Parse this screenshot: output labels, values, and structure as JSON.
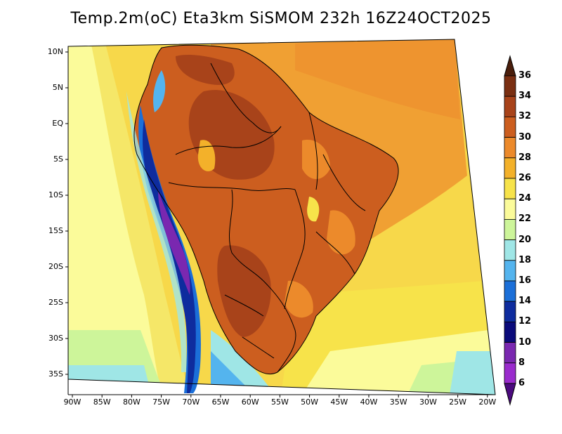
{
  "title": "Temp.2m(oC) Eta3km SiSMOM 232h 16Z24OCT2025",
  "y_axis_ticks": [
    "10N",
    "5N",
    "EQ",
    "5S",
    "10S",
    "15S",
    "20S",
    "25S",
    "30S",
    "35S"
  ],
  "x_axis_ticks": [
    "90W",
    "85W",
    "80W",
    "75W",
    "70W",
    "65W",
    "60W",
    "55W",
    "50W",
    "45W",
    "40W",
    "35W",
    "30W",
    "25W",
    "20W"
  ],
  "colorbar": {
    "labels": [
      "36",
      "34",
      "32",
      "30",
      "28",
      "26",
      "24",
      "22",
      "20",
      "18",
      "16",
      "14",
      "12",
      "10",
      "8",
      "6"
    ],
    "colors": [
      "#4a1e0c",
      "#7a2f12",
      "#a8431a",
      "#cc5e1f",
      "#ec8a2b",
      "#f3b12a",
      "#f7e34a",
      "#fbfb9a",
      "#cdf59a",
      "#9fe6e6",
      "#54b4ee",
      "#1b6fd8",
      "#0e2c9e",
      "#0a0a7a",
      "#7a28b0",
      "#9a2ccd",
      "#4b0a7e"
    ],
    "over_color": "#4a1e0c",
    "under_color": "#4b0a7e"
  },
  "icons": {
    "arrow_top": "triangle-up-icon",
    "arrow_bottom": "triangle-down-icon"
  }
}
